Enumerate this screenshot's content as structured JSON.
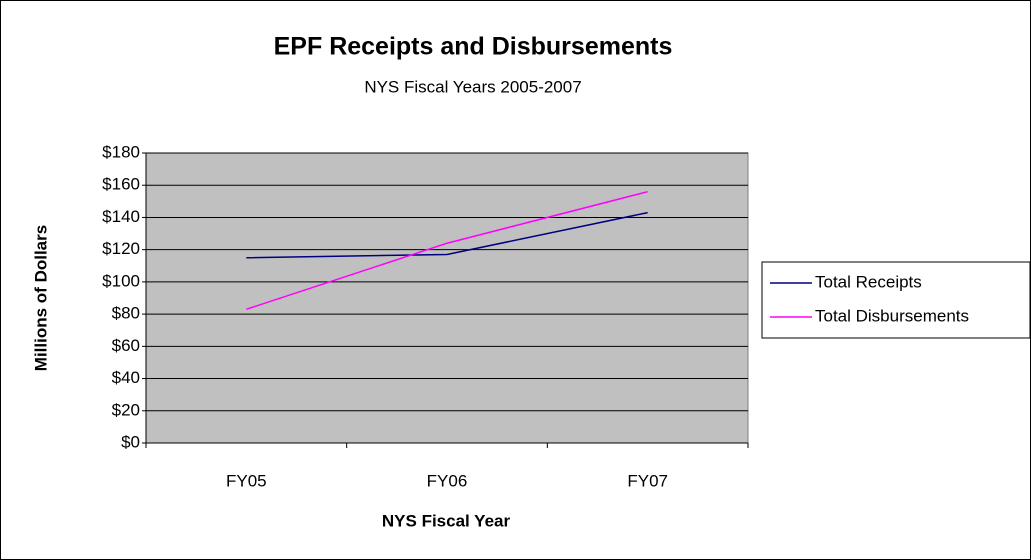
{
  "chart_data": {
    "type": "line",
    "title": "EPF Receipts and Disbursements",
    "subtitle": "NYS Fiscal Years 2005-2007",
    "x_label": "NYS Fiscal Year",
    "y_label": "Millions of Dollars",
    "categories": [
      "FY05",
      "FY06",
      "FY07"
    ],
    "series": [
      {
        "name": "Total Receipts",
        "color": "#000080",
        "values": [
          115,
          117,
          143
        ]
      },
      {
        "name": "Total Disbursements",
        "color": "#ff00ff",
        "values": [
          83,
          124,
          156
        ]
      }
    ],
    "ylim": [
      0,
      180
    ],
    "yticks": [
      {
        "value": 0,
        "label": "$0"
      },
      {
        "value": 20,
        "label": "$20"
      },
      {
        "value": 40,
        "label": "$40"
      },
      {
        "value": 60,
        "label": "$60"
      },
      {
        "value": 80,
        "label": "$80"
      },
      {
        "value": 100,
        "label": "$100"
      },
      {
        "value": 120,
        "label": "$120"
      },
      {
        "value": 140,
        "label": "$140"
      },
      {
        "value": 160,
        "label": "$160"
      },
      {
        "value": 180,
        "label": "$180"
      }
    ],
    "grid": true,
    "legend": "right"
  }
}
